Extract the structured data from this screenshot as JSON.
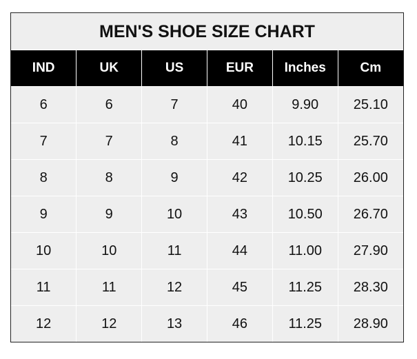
{
  "title": "MEN'S SHOE SIZE CHART",
  "columns": [
    "IND",
    "UK",
    "US",
    "EUR",
    "Inches",
    "Cm"
  ],
  "rows": [
    [
      "6",
      "6",
      "7",
      "40",
      "9.90",
      "25.10"
    ],
    [
      "7",
      "7",
      "8",
      "41",
      "10.15",
      "25.70"
    ],
    [
      "8",
      "8",
      "9",
      "42",
      "10.25",
      "26.00"
    ],
    [
      "9",
      "9",
      "10",
      "43",
      "10.50",
      "26.70"
    ],
    [
      "10",
      "10",
      "11",
      "44",
      "11.00",
      "27.90"
    ],
    [
      "11",
      "11",
      "12",
      "45",
      "11.25",
      "28.30"
    ],
    [
      "12",
      "12",
      "13",
      "46",
      "11.25",
      "28.90"
    ]
  ],
  "colors": {
    "header_bg": "#000000",
    "header_text": "#ffffff",
    "cell_bg": "#eeeeee"
  }
}
